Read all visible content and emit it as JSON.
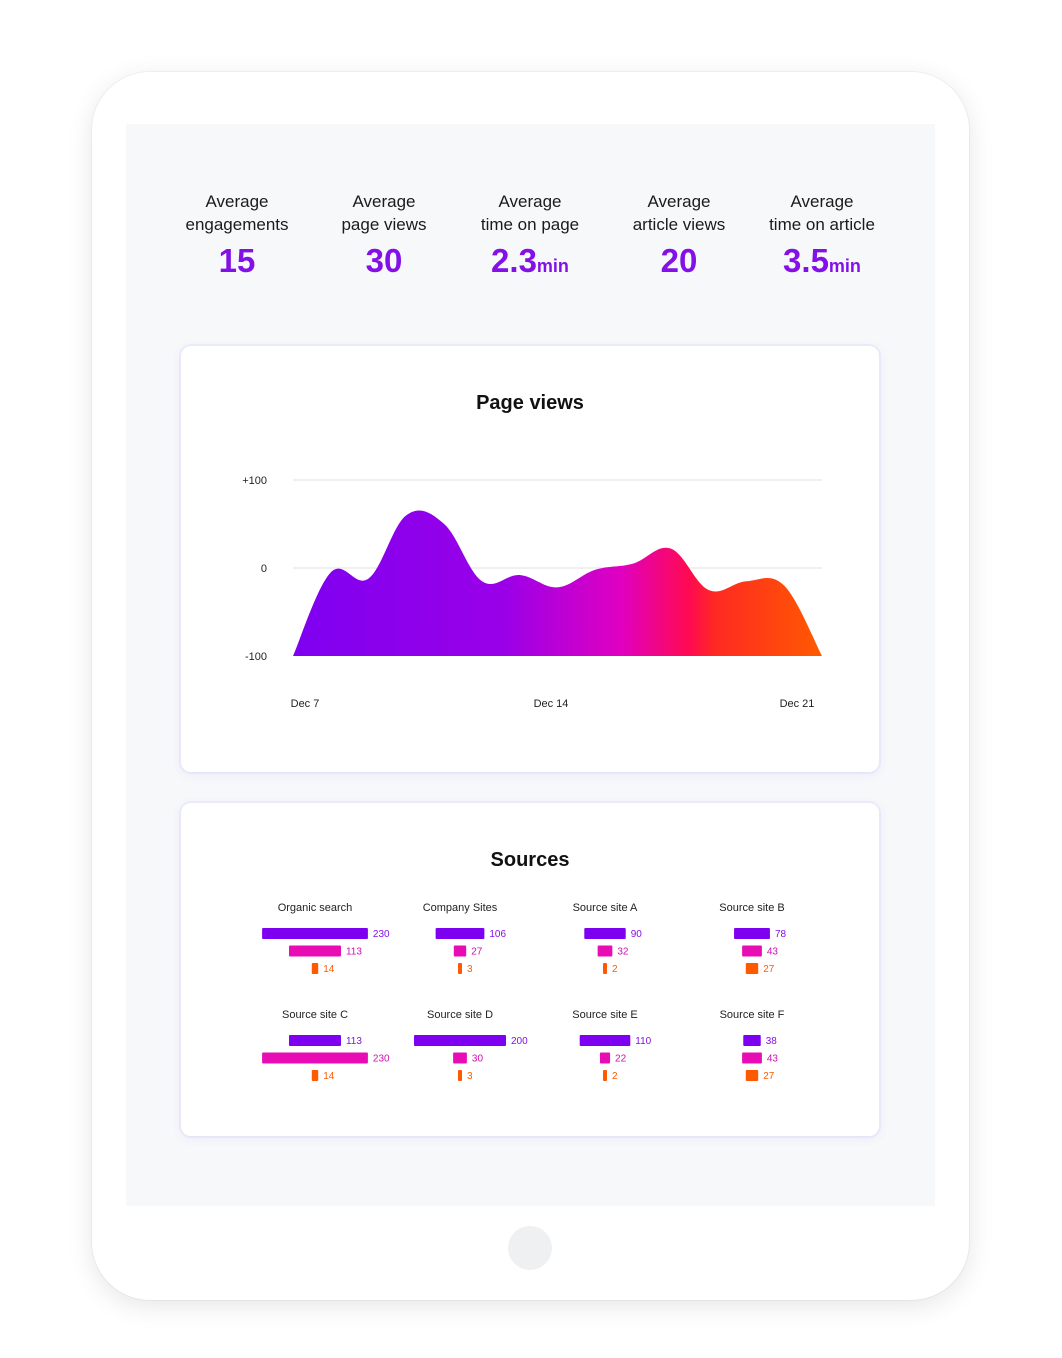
{
  "stats": [
    {
      "line1": "Average",
      "line2": "engagements",
      "value": "15",
      "unit": ""
    },
    {
      "line1": "Average",
      "line2": "page views",
      "value": "30",
      "unit": ""
    },
    {
      "line1": "Average",
      "line2": "time on page",
      "value": "2.3",
      "unit": "min"
    },
    {
      "line1": "Average",
      "line2": "article views",
      "value": "20",
      "unit": ""
    },
    {
      "line1": "Average",
      "line2": "time on article",
      "value": "3.5",
      "unit": "min"
    }
  ],
  "colors": {
    "accent": "#8410e8",
    "purple": "#7e00f0",
    "magenta": "#e80cb4",
    "orange": "#ff5a00"
  },
  "chart_data": [
    {
      "type": "area",
      "title": "Page views",
      "y_ticks": [
        "+100",
        "0",
        "-100"
      ],
      "ylim": [
        -100,
        100
      ],
      "x_ticks": [
        "Dec 7",
        "Dec 14",
        "Dec 21"
      ],
      "x": [
        7,
        8,
        9,
        10,
        11,
        12,
        13,
        14,
        15,
        16,
        17,
        18,
        19,
        20,
        21
      ],
      "values": [
        -100,
        -5,
        -12,
        60,
        50,
        -15,
        -8,
        -22,
        -2,
        5,
        22,
        -25,
        -15,
        -20,
        -100
      ],
      "grid": true,
      "legend": "none"
    },
    {
      "type": "bar",
      "title": "Sources",
      "groups": [
        {
          "name": "Organic search",
          "values": [
            230,
            113,
            14
          ]
        },
        {
          "name": "Company Sites",
          "values": [
            106,
            27,
            3
          ]
        },
        {
          "name": "Source site A",
          "values": [
            90,
            32,
            2
          ]
        },
        {
          "name": "Source site B",
          "values": [
            78,
            43,
            27
          ]
        },
        {
          "name": "Source site C",
          "values": [
            113,
            230,
            14
          ]
        },
        {
          "name": "Source site D",
          "values": [
            200,
            30,
            3
          ]
        },
        {
          "name": "Source site E",
          "values": [
            110,
            22,
            2
          ]
        },
        {
          "name": "Source site F",
          "values": [
            38,
            43,
            27
          ]
        }
      ],
      "legend": "none"
    }
  ]
}
